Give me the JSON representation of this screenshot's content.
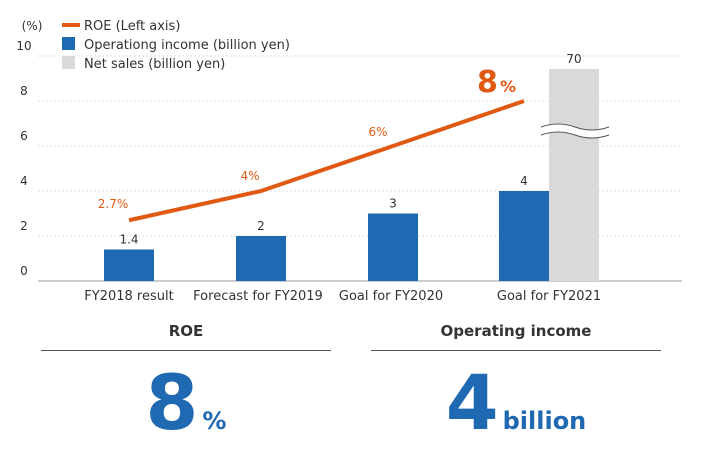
{
  "chart_data": {
    "type": "bar",
    "unit_label": "(%)",
    "y_ticks": [
      "0",
      "2",
      "4",
      "6",
      "8",
      "10"
    ],
    "ylim": [
      0,
      10
    ],
    "categories": [
      "FY2018 result",
      "Forecast for FY2019",
      "Goal for FY2020",
      "Goal for FY2021"
    ],
    "legend": {
      "placement": "top-left",
      "roe": "ROE (Left axis)",
      "operating": "Operationg income (billion yen)",
      "net_sales": "Net sales (billion yen)"
    },
    "series": [
      {
        "name": "ROE (Left axis)",
        "type": "line",
        "color": "#e05a14",
        "values": [
          2.7,
          4,
          6,
          8
        ],
        "labels": [
          "2.7%",
          "4%",
          "6%",
          "8"
        ],
        "last_label_unit": "%"
      },
      {
        "name": "Operationg income (billion yen)",
        "type": "bar",
        "color": "#1f68b2",
        "values": [
          1.4,
          2,
          3,
          4
        ],
        "labels": [
          "1.4",
          "2",
          "3",
          "4"
        ]
      },
      {
        "name": "Net sales (billion yen)",
        "type": "bar",
        "color": "#d9d9d9",
        "values": [
          null,
          null,
          null,
          70
        ],
        "labels": [
          "",
          "",
          "",
          "70"
        ],
        "axis_break": true
      }
    ],
    "grid": true
  },
  "summary": {
    "roe": {
      "heading": "ROE",
      "value": "8",
      "unit": "%"
    },
    "operating": {
      "heading": "Operating income",
      "value": "4",
      "unit": "billion"
    }
  }
}
